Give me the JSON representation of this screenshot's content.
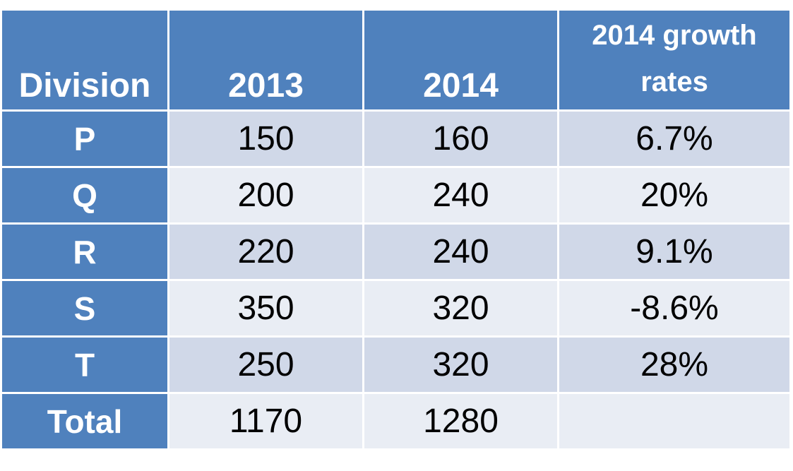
{
  "chart_data": {
    "type": "table",
    "columns": [
      "Division",
      "2013",
      "2014",
      "2014 growth rates"
    ],
    "rows": [
      {
        "division": "P",
        "y2013": "150",
        "y2014": "160",
        "growth": "6.7%"
      },
      {
        "division": "Q",
        "y2013": "200",
        "y2014": "240",
        "growth": "20%"
      },
      {
        "division": "R",
        "y2013": "220",
        "y2014": "240",
        "growth": "9.1%"
      },
      {
        "division": "S",
        "y2013": "350",
        "y2014": "320",
        "growth": "-8.6%"
      },
      {
        "division": "T",
        "y2013": "250",
        "y2014": "320",
        "growth": "28%"
      },
      {
        "division": "Total",
        "y2013": "1170",
        "y2014": "1280",
        "growth": ""
      }
    ]
  },
  "colors": {
    "header": "#4f81bd",
    "row_dark": "#d0d8e8",
    "row_light": "#e9edf4",
    "header_text": "#ffffff"
  }
}
